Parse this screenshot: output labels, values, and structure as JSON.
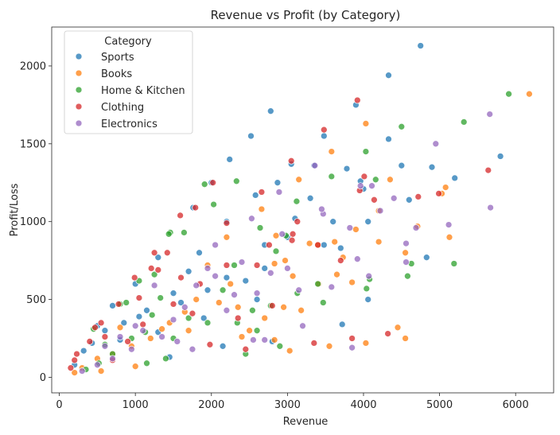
{
  "chart_data": {
    "type": "scatter",
    "title": "Revenue vs Profit (by Category)",
    "xlabel": "Revenue",
    "ylabel": "Profit/Loss",
    "xlim": [
      -100,
      6500
    ],
    "ylim": [
      -100,
      2250
    ],
    "xticks": [
      0,
      1000,
      2000,
      3000,
      4000,
      5000,
      6000
    ],
    "yticks": [
      0,
      500,
      1000,
      1500,
      2000
    ],
    "grid": false,
    "legend": {
      "title": "Category",
      "placement": "top-left"
    },
    "series": [
      {
        "name": "Sports",
        "color": "#1f77b4",
        "points": [
          [
            4750,
            2130
          ],
          [
            4330,
            1940
          ],
          [
            3900,
            1750
          ],
          [
            2780,
            1710
          ],
          [
            2520,
            1550
          ],
          [
            5800,
            1420
          ],
          [
            4900,
            1350
          ],
          [
            3050,
            1370
          ],
          [
            5200,
            1280
          ],
          [
            2870,
            1250
          ],
          [
            4000,
            1210
          ],
          [
            3480,
            1550
          ],
          [
            4330,
            1530
          ],
          [
            3780,
            1340
          ],
          [
            3350,
            1360
          ],
          [
            2240,
            1400
          ],
          [
            2000,
            1250
          ],
          [
            1760,
            1090
          ],
          [
            2580,
            1170
          ],
          [
            4060,
            1000
          ],
          [
            4600,
            1140
          ],
          [
            3480,
            850
          ],
          [
            3700,
            830
          ],
          [
            4060,
            500
          ],
          [
            4830,
            770
          ],
          [
            4500,
            1360
          ],
          [
            3960,
            1260
          ],
          [
            3100,
            1020
          ],
          [
            2700,
            850
          ],
          [
            2200,
            1000
          ],
          [
            1840,
            800
          ],
          [
            1300,
            770
          ],
          [
            1000,
            600
          ],
          [
            700,
            460
          ],
          [
            500,
            330
          ],
          [
            320,
            170
          ],
          [
            1500,
            540
          ],
          [
            2200,
            640
          ],
          [
            2600,
            500
          ],
          [
            3000,
            900
          ],
          [
            3300,
            1150
          ],
          [
            3600,
            1000
          ],
          [
            1150,
            430
          ],
          [
            850,
            350
          ],
          [
            1600,
            480
          ],
          [
            2700,
            700
          ],
          [
            2450,
            620
          ],
          [
            1950,
            560
          ],
          [
            1050,
            390
          ],
          [
            600,
            300
          ],
          [
            430,
            220
          ],
          [
            200,
            80
          ],
          [
            800,
            240
          ],
          [
            1300,
            290
          ],
          [
            2150,
            200
          ],
          [
            3720,
            340
          ],
          [
            1700,
            680
          ],
          [
            2800,
            230
          ],
          [
            1900,
            380
          ],
          [
            1450,
            130
          ]
        ]
      },
      {
        "name": "Books",
        "color": "#ff7f0e",
        "points": [
          [
            6180,
            1820
          ],
          [
            4030,
            1630
          ],
          [
            3580,
            1450
          ],
          [
            3150,
            1270
          ],
          [
            4350,
            1270
          ],
          [
            5080,
            1220
          ],
          [
            5030,
            1180
          ],
          [
            2660,
            1080
          ],
          [
            4200,
            1070
          ],
          [
            3900,
            950
          ],
          [
            4710,
            970
          ],
          [
            5130,
            900
          ],
          [
            4200,
            870
          ],
          [
            3290,
            860
          ],
          [
            3400,
            850
          ],
          [
            3620,
            870
          ],
          [
            4550,
            800
          ],
          [
            3730,
            770
          ],
          [
            2830,
            730
          ],
          [
            2970,
            750
          ],
          [
            3070,
            650
          ],
          [
            3650,
            660
          ],
          [
            3410,
            600
          ],
          [
            3180,
            430
          ],
          [
            4450,
            320
          ],
          [
            2830,
            240
          ],
          [
            3030,
            170
          ],
          [
            3550,
            200
          ],
          [
            4030,
            220
          ],
          [
            4550,
            250
          ],
          [
            2250,
            600
          ],
          [
            2200,
            900
          ],
          [
            1950,
            720
          ],
          [
            2350,
            450
          ],
          [
            2700,
            380
          ],
          [
            1650,
            420
          ],
          [
            1450,
            350
          ],
          [
            1200,
            250
          ],
          [
            950,
            200
          ],
          [
            700,
            150
          ],
          [
            500,
            120
          ],
          [
            300,
            60
          ],
          [
            200,
            30
          ],
          [
            1800,
            500
          ],
          [
            2500,
            300
          ],
          [
            2100,
            480
          ],
          [
            1350,
            310
          ],
          [
            1000,
            70
          ],
          [
            550,
            40
          ],
          [
            2850,
            910
          ],
          [
            3850,
            610
          ],
          [
            2400,
            260
          ],
          [
            1700,
            300
          ],
          [
            800,
            320
          ],
          [
            2950,
            450
          ]
        ]
      },
      {
        "name": "Home & Kitchen",
        "color": "#2ca02c",
        "points": [
          [
            5910,
            1820
          ],
          [
            5320,
            1640
          ],
          [
            4500,
            1610
          ],
          [
            4030,
            1450
          ],
          [
            3580,
            1290
          ],
          [
            4160,
            1270
          ],
          [
            3120,
            1130
          ],
          [
            2330,
            1260
          ],
          [
            2030,
            1110
          ],
          [
            1910,
            1240
          ],
          [
            1460,
            930
          ],
          [
            1440,
            920
          ],
          [
            1640,
            930
          ],
          [
            2640,
            960
          ],
          [
            2980,
            910
          ],
          [
            4630,
            730
          ],
          [
            5190,
            730
          ],
          [
            4080,
            630
          ],
          [
            4040,
            570
          ],
          [
            3470,
            480
          ],
          [
            4580,
            650
          ],
          [
            3130,
            540
          ],
          [
            2780,
            460
          ],
          [
            2540,
            430
          ],
          [
            2340,
            350
          ],
          [
            1330,
            510
          ],
          [
            1220,
            400
          ],
          [
            1130,
            290
          ],
          [
            950,
            250
          ],
          [
            700,
            150
          ],
          [
            520,
            90
          ],
          [
            350,
            50
          ],
          [
            1500,
            250
          ],
          [
            1950,
            350
          ],
          [
            2600,
            300
          ],
          [
            2900,
            200
          ],
          [
            1400,
            120
          ],
          [
            1150,
            90
          ],
          [
            880,
            480
          ],
          [
            2300,
            720
          ],
          [
            2850,
            810
          ],
          [
            1050,
            620
          ],
          [
            1700,
            380
          ],
          [
            2150,
            560
          ],
          [
            3400,
            600
          ],
          [
            1250,
            660
          ],
          [
            800,
            470
          ],
          [
            450,
            310
          ],
          [
            600,
            210
          ],
          [
            2450,
            150
          ]
        ]
      },
      {
        "name": "Clothing",
        "color": "#d62728",
        "points": [
          [
            3920,
            1780
          ],
          [
            3480,
            1590
          ],
          [
            3050,
            1390
          ],
          [
            2660,
            1190
          ],
          [
            2020,
            1250
          ],
          [
            1590,
            1040
          ],
          [
            5640,
            1330
          ],
          [
            4990,
            1180
          ],
          [
            4010,
            1290
          ],
          [
            3950,
            1200
          ],
          [
            4140,
            1140
          ],
          [
            4720,
            1160
          ],
          [
            3070,
            920
          ],
          [
            3060,
            880
          ],
          [
            3130,
            1000
          ],
          [
            3400,
            850
          ],
          [
            2760,
            850
          ],
          [
            2200,
            990
          ],
          [
            2200,
            720
          ],
          [
            1790,
            1090
          ],
          [
            1250,
            800
          ],
          [
            1420,
            800
          ],
          [
            1210,
            700
          ],
          [
            1300,
            690
          ],
          [
            990,
            640
          ],
          [
            780,
            470
          ],
          [
            550,
            350
          ],
          [
            600,
            260
          ],
          [
            470,
            320
          ],
          [
            400,
            230
          ],
          [
            230,
            150
          ],
          [
            150,
            60
          ],
          [
            1100,
            340
          ],
          [
            1750,
            410
          ],
          [
            1980,
            210
          ],
          [
            2450,
            180
          ],
          [
            3350,
            220
          ],
          [
            3850,
            250
          ],
          [
            4320,
            280
          ],
          [
            2600,
            720
          ],
          [
            1500,
            470
          ],
          [
            1850,
            600
          ],
          [
            900,
            230
          ],
          [
            700,
            110
          ],
          [
            200,
            110
          ],
          [
            2800,
            460
          ],
          [
            3700,
            750
          ],
          [
            2350,
            380
          ],
          [
            1600,
            640
          ],
          [
            1050,
            510
          ]
        ]
      },
      {
        "name": "Electronics",
        "color": "#9467bd",
        "points": [
          [
            5660,
            1690
          ],
          [
            4950,
            1500
          ],
          [
            4110,
            1230
          ],
          [
            3960,
            1230
          ],
          [
            3360,
            1360
          ],
          [
            2890,
            1190
          ],
          [
            4690,
            960
          ],
          [
            5120,
            980
          ],
          [
            5670,
            1090
          ],
          [
            4560,
            860
          ],
          [
            4560,
            740
          ],
          [
            3920,
            760
          ],
          [
            4070,
            650
          ],
          [
            4220,
            1070
          ],
          [
            3470,
            1050
          ],
          [
            3450,
            1080
          ],
          [
            3820,
            960
          ],
          [
            2930,
            920
          ],
          [
            2530,
            1020
          ],
          [
            2050,
            850
          ],
          [
            2780,
            670
          ],
          [
            3200,
            330
          ],
          [
            3000,
            700
          ],
          [
            3580,
            580
          ],
          [
            2600,
            540
          ],
          [
            2050,
            650
          ],
          [
            1800,
            590
          ],
          [
            1650,
            450
          ],
          [
            1500,
            370
          ],
          [
            1350,
            260
          ],
          [
            1100,
            300
          ],
          [
            950,
            180
          ],
          [
            700,
            120
          ],
          [
            500,
            80
          ],
          [
            300,
            40
          ],
          [
            2300,
            530
          ],
          [
            2550,
            240
          ],
          [
            1750,
            180
          ],
          [
            1250,
            590
          ],
          [
            800,
            260
          ],
          [
            3850,
            190
          ],
          [
            1950,
            700
          ],
          [
            2700,
            240
          ],
          [
            2200,
            430
          ],
          [
            4400,
            1150
          ],
          [
            600,
            200
          ],
          [
            1000,
            330
          ],
          [
            1550,
            230
          ],
          [
            3150,
            560
          ],
          [
            2400,
            740
          ]
        ]
      }
    ]
  }
}
